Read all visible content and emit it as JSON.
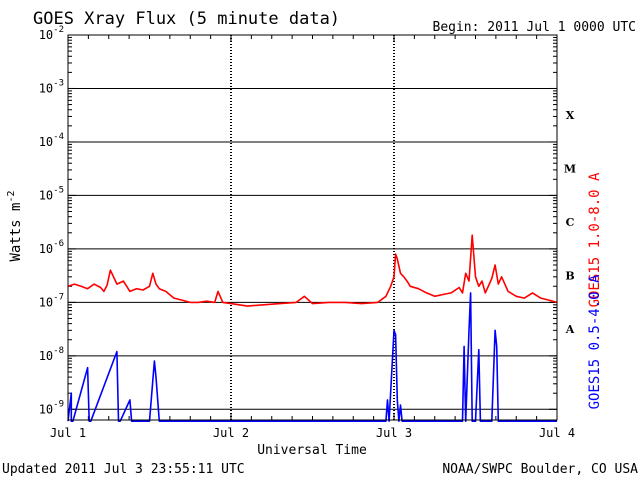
{
  "chart_data": {
    "type": "line",
    "title": "GOES Xray Flux (5 minute data)",
    "begin_text": "Begin:  2011 Jul 1 0000 UTC",
    "xlabel": "Universal Time",
    "ylabel": "Watts m",
    "ylabel_exp": "-2",
    "y_scale": "log",
    "ylim_exp": [
      -9.2,
      -2
    ],
    "xlim_days": [
      0,
      3
    ],
    "x_ticks": [
      {
        "day": 0,
        "label": "Jul 1"
      },
      {
        "day": 1,
        "label": "Jul 2"
      },
      {
        "day": 2,
        "label": "Jul 3"
      },
      {
        "day": 3,
        "label": "Jul 4"
      }
    ],
    "y_ticks": [
      {
        "exp": -2,
        "label": "10",
        "sup": "-2"
      },
      {
        "exp": -3,
        "label": "10",
        "sup": "-3"
      },
      {
        "exp": -4,
        "label": "10",
        "sup": "-4"
      },
      {
        "exp": -5,
        "label": "10",
        "sup": "-5"
      },
      {
        "exp": -6,
        "label": "10",
        "sup": "-6"
      },
      {
        "exp": -7,
        "label": "10",
        "sup": "-7"
      },
      {
        "exp": -8,
        "label": "10",
        "sup": "-8"
      },
      {
        "exp": -9,
        "label": "10",
        "sup": "-9"
      }
    ],
    "flare_classes": [
      {
        "label": "X",
        "exp": -3.5
      },
      {
        "label": "M",
        "exp": -4.5
      },
      {
        "label": "C",
        "exp": -5.5
      },
      {
        "label": "B",
        "exp": -6.5
      },
      {
        "label": "A",
        "exp": -7.5
      }
    ],
    "series": [
      {
        "name": "GOES15 1.0-8.0 A",
        "color": "#ff0000",
        "x": [
          0,
          0.04,
          0.08,
          0.12,
          0.16,
          0.2,
          0.22,
          0.24,
          0.26,
          0.3,
          0.34,
          0.38,
          0.42,
          0.46,
          0.5,
          0.52,
          0.54,
          0.56,
          0.6,
          0.65,
          0.7,
          0.75,
          0.8,
          0.85,
          0.9,
          0.92,
          0.95,
          1.0,
          1.1,
          1.2,
          1.3,
          1.4,
          1.45,
          1.5,
          1.6,
          1.7,
          1.8,
          1.9,
          1.95,
          1.98,
          2.0,
          2.01,
          2.02,
          2.04,
          2.06,
          2.08,
          2.1,
          2.15,
          2.2,
          2.25,
          2.3,
          2.35,
          2.4,
          2.42,
          2.44,
          2.46,
          2.48,
          2.5,
          2.52,
          2.54,
          2.56,
          2.6,
          2.62,
          2.64,
          2.66,
          2.7,
          2.75,
          2.8,
          2.85,
          2.9,
          2.95,
          3.0
        ],
        "y": [
          2e-07,
          2.2e-07,
          2e-07,
          1.8e-07,
          2.2e-07,
          1.9e-07,
          1.6e-07,
          2.1e-07,
          4e-07,
          2.2e-07,
          2.5e-07,
          1.6e-07,
          1.8e-07,
          1.7e-07,
          2e-07,
          3.5e-07,
          2.2e-07,
          1.8e-07,
          1.6e-07,
          1.2e-07,
          1.1e-07,
          1e-07,
          1e-07,
          1.05e-07,
          1e-07,
          1.6e-07,
          1e-07,
          9.5e-08,
          8.5e-08,
          9e-08,
          9.5e-08,
          1e-07,
          1.3e-07,
          9.5e-08,
          1e-07,
          1e-07,
          9.5e-08,
          1e-07,
          1.3e-07,
          2e-07,
          3e-07,
          8e-07,
          6.5e-07,
          3.5e-07,
          3e-07,
          2.5e-07,
          2e-07,
          1.8e-07,
          1.5e-07,
          1.3e-07,
          1.4e-07,
          1.5e-07,
          1.9e-07,
          1.5e-07,
          3.5e-07,
          2.5e-07,
          1.8e-06,
          3e-07,
          2e-07,
          2.5e-07,
          1.5e-07,
          2.8e-07,
          5e-07,
          2.2e-07,
          3e-07,
          1.6e-07,
          1.3e-07,
          1.2e-07,
          1.5e-07,
          1.2e-07,
          1.1e-07,
          1e-07
        ]
      },
      {
        "name": "GOES15 0.5-4.0 A",
        "color": "#0000ff",
        "x": [
          0.0,
          0.02,
          0.02,
          0.03,
          0.12,
          0.13,
          0.14,
          0.3,
          0.31,
          0.32,
          0.38,
          0.39,
          0.4,
          0.5,
          0.53,
          0.54,
          0.55,
          0.56,
          1.0,
          1.95,
          1.96,
          1.97,
          2.0,
          2.01,
          2.02,
          2.03,
          2.04,
          2.05,
          2.42,
          2.43,
          2.44,
          2.46,
          2.47,
          2.48,
          2.5,
          2.52,
          2.53,
          2.54,
          2.6,
          2.62,
          2.63,
          2.64,
          3.0
        ],
        "y": [
          6e-10,
          2e-09,
          6e-10,
          6e-10,
          6e-09,
          6e-10,
          6e-10,
          1.2e-08,
          6e-10,
          6e-10,
          1.5e-09,
          6e-10,
          6e-10,
          6e-10,
          8e-09,
          4e-09,
          1.5e-09,
          6e-10,
          6e-10,
          6e-10,
          1.5e-09,
          6e-10,
          3e-08,
          2.5e-08,
          1.5e-09,
          6e-10,
          1.2e-09,
          6e-10,
          6e-10,
          1.5e-08,
          6e-10,
          3e-08,
          1.5e-07,
          6e-10,
          6e-10,
          1.3e-08,
          6e-10,
          6e-10,
          6e-10,
          3e-08,
          1.5e-08,
          6e-10,
          6e-10
        ]
      }
    ]
  },
  "footer": {
    "updated": "Updated 2011 Jul  3 23:55:11 UTC",
    "source": "NOAA/SWPC Boulder, CO USA"
  }
}
